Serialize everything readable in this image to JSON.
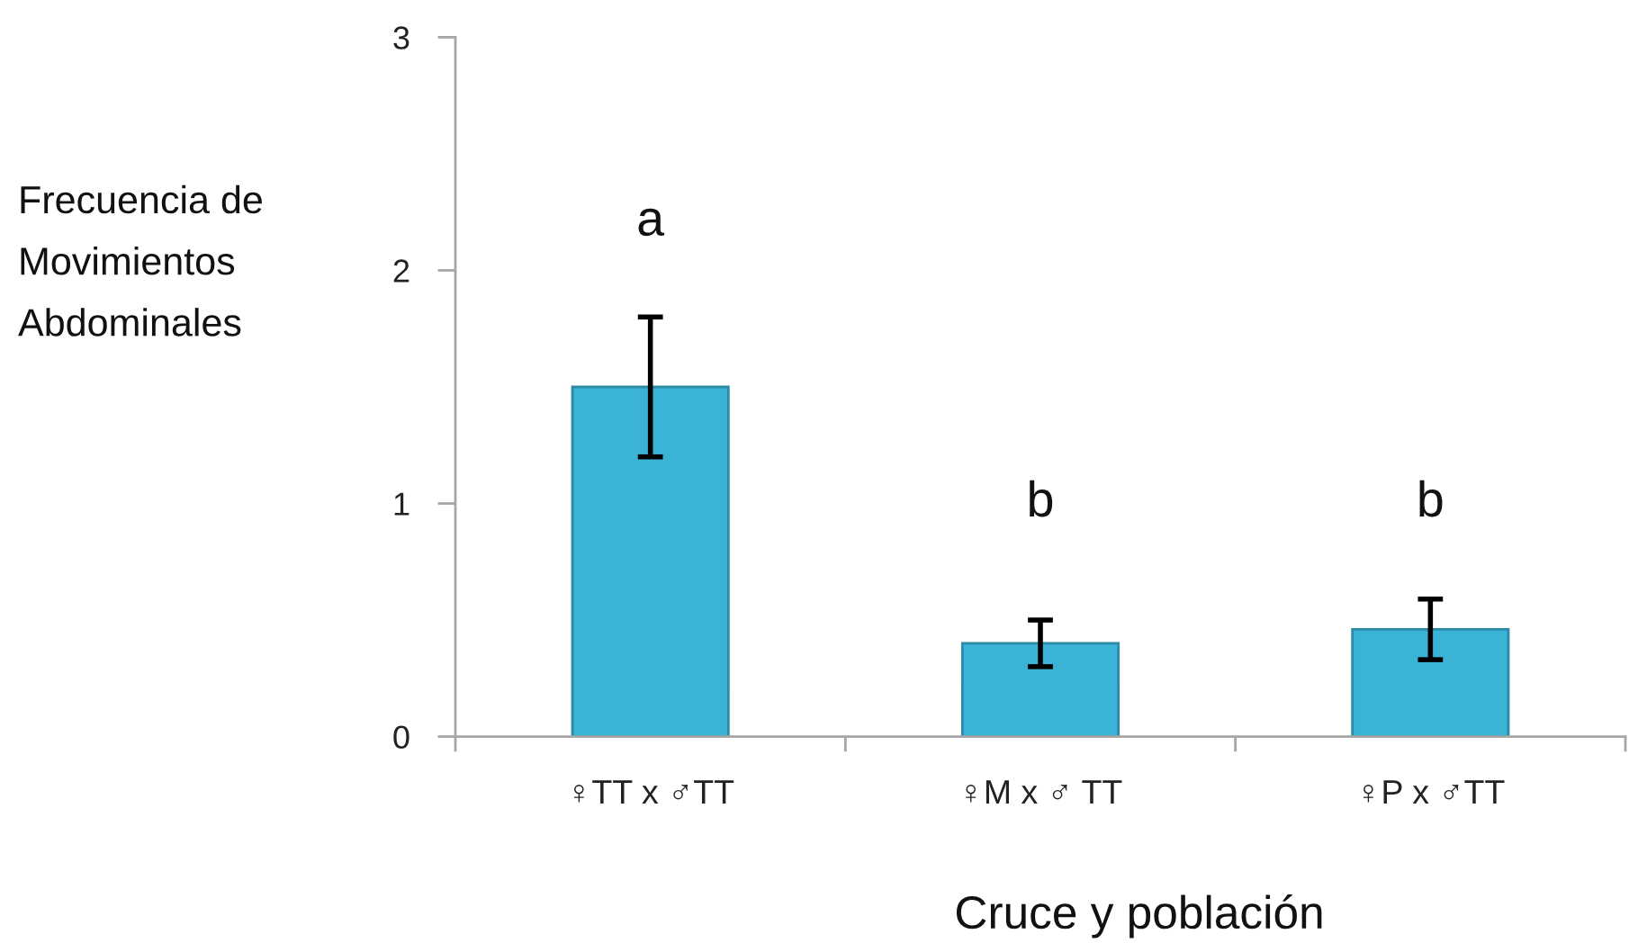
{
  "chart_data": {
    "type": "bar",
    "xlabel": "Cruce y población",
    "ylabel": "Frecuencia de\nMovimientos\nAbdominales",
    "categories": [
      "♀TT x ♂TT",
      "♀M x ♂ TT",
      "♀P x ♂TT"
    ],
    "values": [
      1.5,
      0.4,
      0.46
    ],
    "errors": [
      0.3,
      0.1,
      0.13
    ],
    "color": "#3ab3d7",
    "ylim": [
      0,
      3
    ],
    "yticks": [
      0,
      1,
      2,
      3
    ],
    "annotations": [
      "a",
      "b",
      "b"
    ]
  }
}
